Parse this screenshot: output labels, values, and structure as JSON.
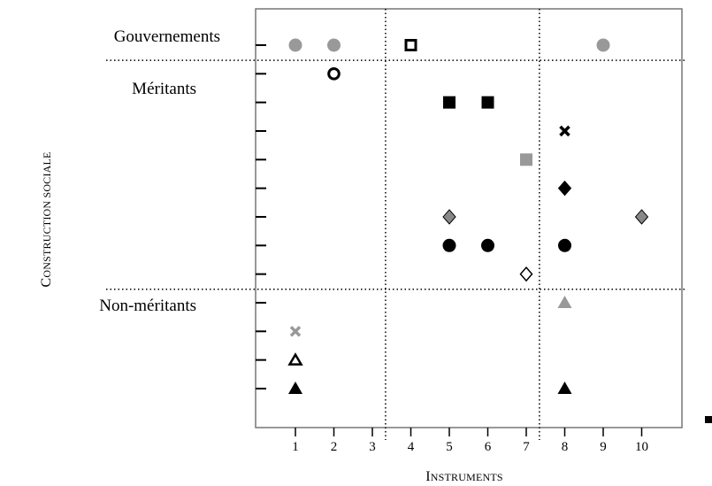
{
  "chart_data": {
    "type": "scatter",
    "xlabel_prefix": "I",
    "xlabel_rest": "NSTRUMENTS",
    "ylabel_prefix": "C",
    "ylabel_rest": "ONSTRUCTION SOCIALE",
    "xticks": [
      1,
      2,
      3,
      4,
      5,
      6,
      7,
      8,
      9,
      10
    ],
    "xlim": [
      0,
      11
    ],
    "row_count": 13,
    "groups": [
      {
        "label": "Gouvernements",
        "row_start": 0,
        "row_end": 0
      },
      {
        "label": "Méritants",
        "row_start": 1,
        "row_end": 8
      },
      {
        "label": "Non-méritants",
        "row_start": 9,
        "row_end": 12
      }
    ],
    "vertical_dividers_x": [
      3.4,
      7.4
    ],
    "colors": {
      "black": "#000000",
      "gray": "#999999",
      "dark_gray": "#888888"
    },
    "points": [
      {
        "x": 1,
        "row": 0,
        "marker": "circle",
        "color": "#999999"
      },
      {
        "x": 2,
        "row": 0,
        "marker": "circle",
        "color": "#999999"
      },
      {
        "x": 4,
        "row": 0,
        "marker": "square-open",
        "color": "#000000"
      },
      {
        "x": 9,
        "row": 0,
        "marker": "circle",
        "color": "#999999"
      },
      {
        "x": 2,
        "row": 1,
        "marker": "circle-open",
        "color": "#000000"
      },
      {
        "x": 5,
        "row": 2,
        "marker": "square",
        "color": "#000000"
      },
      {
        "x": 6,
        "row": 2,
        "marker": "square",
        "color": "#000000"
      },
      {
        "x": 8,
        "row": 3,
        "marker": "x",
        "color": "#000000"
      },
      {
        "x": 7,
        "row": 4,
        "marker": "square",
        "color": "#999999"
      },
      {
        "x": 8,
        "row": 5,
        "marker": "diamond",
        "color": "#000000"
      },
      {
        "x": 5,
        "row": 6,
        "marker": "diamond",
        "color": "#888888"
      },
      {
        "x": 10,
        "row": 6,
        "marker": "diamond",
        "color": "#888888"
      },
      {
        "x": 5,
        "row": 7,
        "marker": "circle",
        "color": "#000000"
      },
      {
        "x": 6,
        "row": 7,
        "marker": "circle",
        "color": "#000000"
      },
      {
        "x": 8,
        "row": 7,
        "marker": "circle",
        "color": "#000000"
      },
      {
        "x": 7,
        "row": 8,
        "marker": "diamond-open",
        "color": "#000000"
      },
      {
        "x": 8,
        "row": 9,
        "marker": "triangle",
        "color": "#999999"
      },
      {
        "x": 1,
        "row": 10,
        "marker": "x",
        "color": "#999999"
      },
      {
        "x": 1,
        "row": 11,
        "marker": "triangle-open",
        "color": "#000000"
      },
      {
        "x": 1,
        "row": 12,
        "marker": "triangle",
        "color": "#000000"
      },
      {
        "x": 8,
        "row": 12,
        "marker": "triangle",
        "color": "#000000"
      }
    ]
  }
}
